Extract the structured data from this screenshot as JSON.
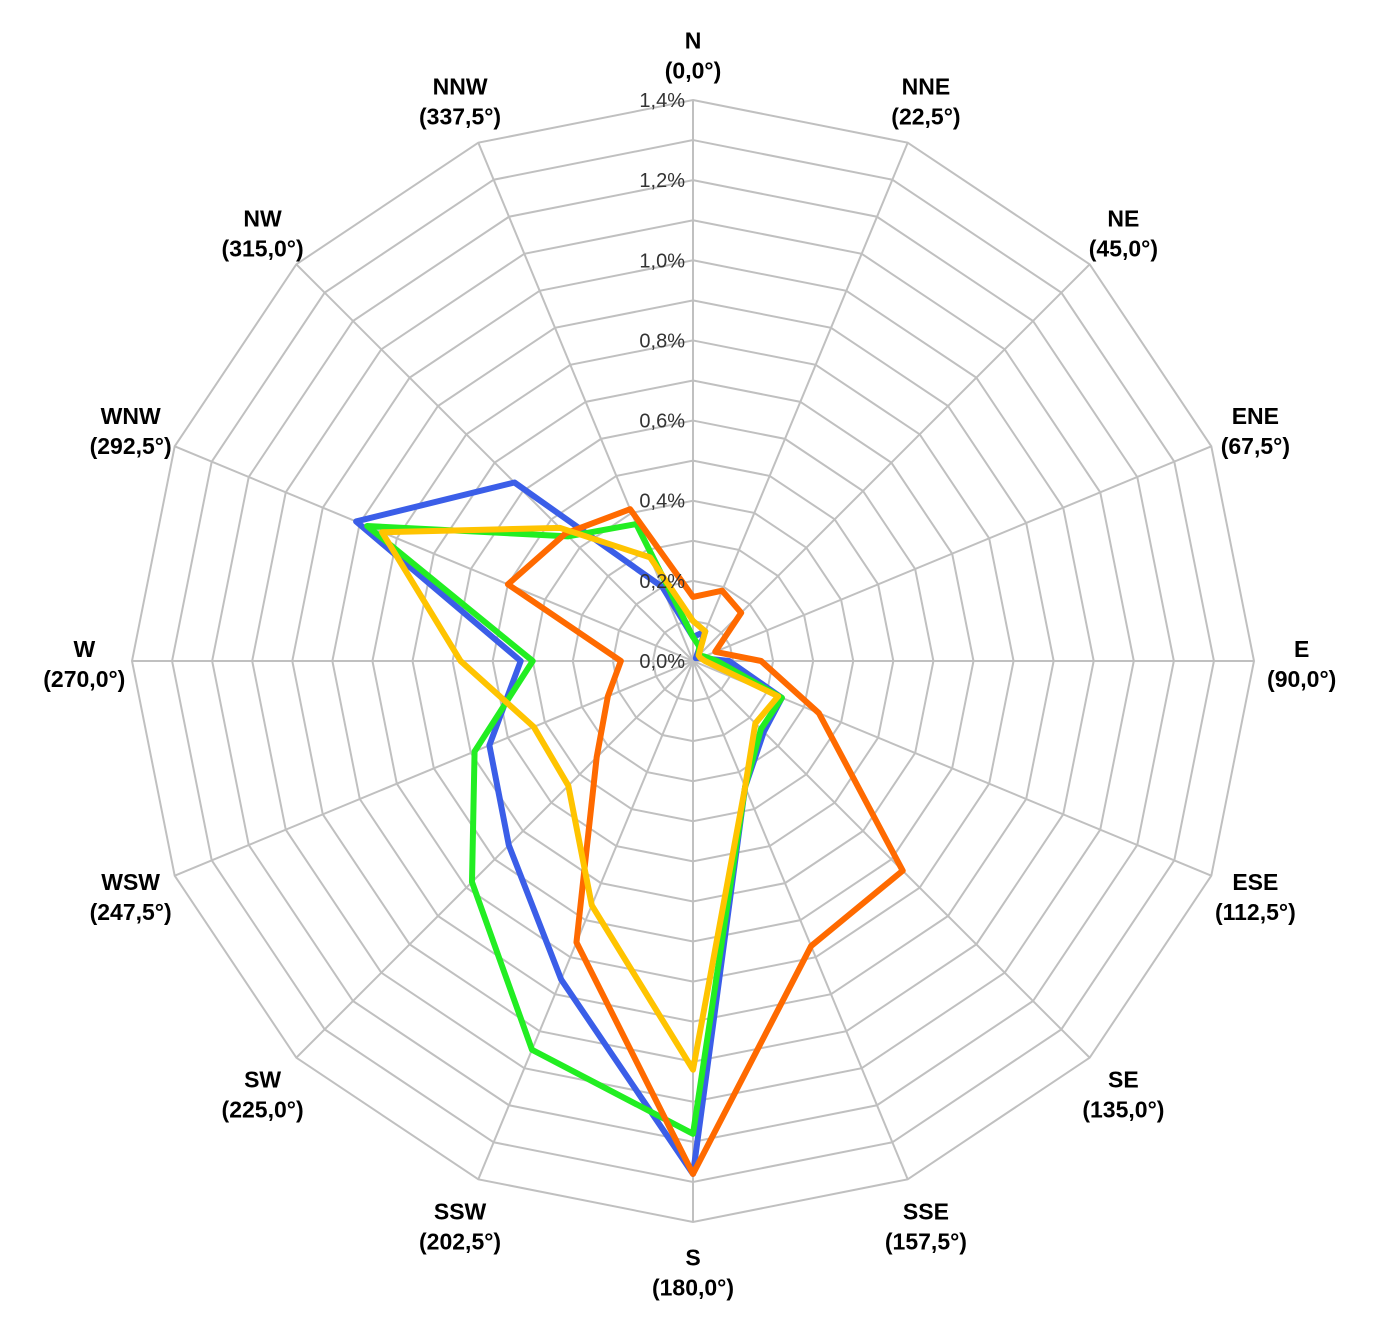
{
  "chart_data": {
    "type": "radar",
    "directions": [
      {
        "name": "N",
        "deg": "(0,0°)"
      },
      {
        "name": "NNE",
        "deg": "(22,5°)"
      },
      {
        "name": "NE",
        "deg": "(45,0°)"
      },
      {
        "name": "ENE",
        "deg": "(67,5°)"
      },
      {
        "name": "E",
        "deg": "(90,0°)"
      },
      {
        "name": "ESE",
        "deg": "(112,5°)"
      },
      {
        "name": "SE",
        "deg": "(135,0°)"
      },
      {
        "name": "SSE",
        "deg": "(157,5°)"
      },
      {
        "name": "S",
        "deg": "(180,0°)"
      },
      {
        "name": "SSW",
        "deg": "(202,5°)"
      },
      {
        "name": "SW",
        "deg": "(225,0°)"
      },
      {
        "name": "WSW",
        "deg": "(247,5°)"
      },
      {
        "name": "W",
        "deg": "(270,0°)"
      },
      {
        "name": "WNW",
        "deg": "(292,5°)"
      },
      {
        "name": "NW",
        "deg": "(315,0°)"
      },
      {
        "name": "NNW",
        "deg": "(337,5°)"
      }
    ],
    "ticks": [
      "0,0%",
      "0,2%",
      "0,4%",
      "0,6%",
      "0,8%",
      "1,0%",
      "1,2%",
      "1,4%"
    ],
    "rlim": [
      0,
      1.4
    ],
    "grid": true,
    "series": [
      {
        "color": "#3b5ee8",
        "values": [
          0.06,
          0.08,
          0.01,
          0.02,
          0.09,
          0.24,
          0.25,
          0.34,
          1.28,
          0.86,
          0.65,
          0.55,
          0.43,
          0.91,
          0.63,
          0.2
        ]
      },
      {
        "color": "#22ee22",
        "values": [
          0.06,
          0.04,
          0.02,
          0.03,
          0.06,
          0.24,
          0.24,
          0.34,
          1.18,
          1.05,
          0.78,
          0.59,
          0.4,
          0.88,
          0.44,
          0.37
        ]
      },
      {
        "color": "#ff6a00",
        "values": [
          0.16,
          0.19,
          0.17,
          0.06,
          0.17,
          0.34,
          0.74,
          0.77,
          1.28,
          0.76,
          0.34,
          0.23,
          0.18,
          0.5,
          0.45,
          0.41
        ]
      },
      {
        "color": "#ffc400",
        "values": [
          0.1,
          0.08,
          0.02,
          0.02,
          0.03,
          0.23,
          0.22,
          0.34,
          1.02,
          0.66,
          0.44,
          0.43,
          0.58,
          0.84,
          0.47,
          0.28
        ]
      }
    ]
  }
}
